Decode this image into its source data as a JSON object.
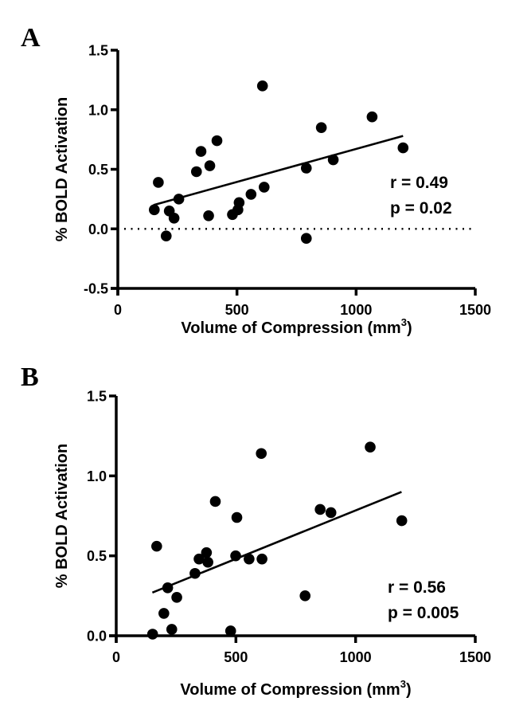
{
  "chart_data": [
    {
      "panel": "A",
      "type": "scatter",
      "title": "",
      "xlabel": "Volume of Compression (mm3)",
      "xlabel_main": "Volume of Compression (mm",
      "xlabel_sup": "3",
      "xlabel_end": ")",
      "ylabel": "% BOLD Activation",
      "xlim": [
        0,
        1500
      ],
      "ylim": [
        -0.5,
        1.5
      ],
      "xticks": [
        0,
        500,
        1000,
        1500
      ],
      "xtick_labels": [
        "0",
        "500",
        "1000",
        "1500"
      ],
      "yticks": [
        -0.5,
        0.0,
        0.5,
        1.0,
        1.5
      ],
      "ytick_labels": [
        "-0.5",
        "0.0",
        "0.5",
        "1.0",
        "1.5"
      ],
      "grid": false,
      "reference_line_y": 0.0,
      "annotations": [
        "r = 0.49",
        "p = 0.02"
      ],
      "points": [
        {
          "x": 153,
          "y": 0.16
        },
        {
          "x": 170,
          "y": 0.39
        },
        {
          "x": 203,
          "y": -0.06
        },
        {
          "x": 216,
          "y": 0.15
        },
        {
          "x": 236,
          "y": 0.09
        },
        {
          "x": 256,
          "y": 0.25
        },
        {
          "x": 330,
          "y": 0.48
        },
        {
          "x": 349,
          "y": 0.65
        },
        {
          "x": 381,
          "y": 0.11
        },
        {
          "x": 386,
          "y": 0.53
        },
        {
          "x": 416,
          "y": 0.74
        },
        {
          "x": 481,
          "y": 0.12
        },
        {
          "x": 504,
          "y": 0.16
        },
        {
          "x": 509,
          "y": 0.22
        },
        {
          "x": 559,
          "y": 0.29
        },
        {
          "x": 607,
          "y": 1.2
        },
        {
          "x": 614,
          "y": 0.35
        },
        {
          "x": 791,
          "y": 0.51
        },
        {
          "x": 791,
          "y": -0.08
        },
        {
          "x": 854,
          "y": 0.85
        },
        {
          "x": 904,
          "y": 0.58
        },
        {
          "x": 1067,
          "y": 0.94
        },
        {
          "x": 1197,
          "y": 0.68
        }
      ],
      "fit_line": {
        "x": [
          150,
          1197
        ],
        "y": [
          0.2,
          0.78
        ]
      }
    },
    {
      "panel": "B",
      "type": "scatter",
      "title": "",
      "xlabel": "Volume of Compression (mm3)",
      "xlabel_main": "Volume of Compression (mm",
      "xlabel_sup": "3",
      "xlabel_end": ")",
      "ylabel": "% BOLD Activation",
      "xlim": [
        0,
        1500
      ],
      "ylim": [
        0.0,
        1.5
      ],
      "xticks": [
        0,
        500,
        1000,
        1500
      ],
      "xtick_labels": [
        "0",
        "500",
        "1000",
        "1500"
      ],
      "yticks": [
        0.0,
        0.5,
        1.0,
        1.5
      ],
      "ytick_labels": [
        "0.0",
        "0.5",
        "1.0",
        "1.5"
      ],
      "grid": false,
      "annotations": [
        "r = 0.56",
        "p = 0.005"
      ],
      "points": [
        {
          "x": 152,
          "y": 0.01
        },
        {
          "x": 169,
          "y": 0.56
        },
        {
          "x": 199,
          "y": 0.14
        },
        {
          "x": 215,
          "y": 0.3
        },
        {
          "x": 232,
          "y": 0.04
        },
        {
          "x": 253,
          "y": 0.24
        },
        {
          "x": 329,
          "y": 0.39
        },
        {
          "x": 346,
          "y": 0.48
        },
        {
          "x": 377,
          "y": 0.52
        },
        {
          "x": 383,
          "y": 0.46
        },
        {
          "x": 414,
          "y": 0.84
        },
        {
          "x": 478,
          "y": 0.03
        },
        {
          "x": 499,
          "y": 0.5
        },
        {
          "x": 504,
          "y": 0.74
        },
        {
          "x": 555,
          "y": 0.48
        },
        {
          "x": 606,
          "y": 1.14
        },
        {
          "x": 609,
          "y": 0.48
        },
        {
          "x": 789,
          "y": 0.25
        },
        {
          "x": 852,
          "y": 0.79
        },
        {
          "x": 897,
          "y": 0.77
        },
        {
          "x": 1061,
          "y": 1.18
        },
        {
          "x": 1193,
          "y": 0.72
        }
      ],
      "fit_line": {
        "x": [
          151,
          1192
        ],
        "y": [
          0.27,
          0.9
        ]
      }
    }
  ]
}
